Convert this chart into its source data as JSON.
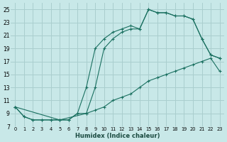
{
  "xlabel": "Humidex (Indice chaleur)",
  "bg_color": "#c8e8e8",
  "grid_color": "#aacece",
  "line_color": "#1a7060",
  "xlim": [
    -0.5,
    23.5
  ],
  "ylim": [
    7,
    26
  ],
  "xticks": [
    0,
    1,
    2,
    3,
    4,
    5,
    6,
    7,
    8,
    9,
    10,
    11,
    12,
    13,
    14,
    15,
    16,
    17,
    18,
    19,
    20,
    21,
    22,
    23
  ],
  "yticks": [
    7,
    9,
    11,
    13,
    15,
    17,
    19,
    21,
    23,
    25
  ],
  "line1_x": [
    0,
    1,
    2,
    3,
    4,
    5,
    6,
    7,
    8,
    9,
    10,
    11,
    12,
    13,
    14,
    15,
    16,
    17,
    18,
    19,
    20,
    21,
    22,
    23
  ],
  "line1_y": [
    10,
    8.5,
    8,
    8,
    8,
    8,
    8,
    9,
    9,
    9.5,
    10,
    11,
    11.5,
    12,
    13,
    14,
    14.5,
    15,
    15.5,
    16,
    16.5,
    17,
    17.5,
    15.5
  ],
  "line2_x": [
    0,
    1,
    2,
    3,
    4,
    5,
    6,
    7,
    8,
    9,
    10,
    11,
    12,
    13,
    14,
    15,
    16,
    17,
    18,
    19,
    20,
    21,
    22,
    23
  ],
  "line2_y": [
    10,
    8.5,
    8,
    8,
    8,
    8,
    8,
    9,
    13,
    19,
    20.5,
    21.5,
    22,
    22.5,
    22,
    25,
    24.5,
    24.5,
    24,
    24,
    23.5,
    20.5,
    18,
    17.5
  ],
  "line3_x": [
    0,
    5,
    8,
    9,
    10,
    11,
    12,
    13,
    14,
    15,
    16,
    17,
    18,
    19,
    20,
    21,
    22,
    23
  ],
  "line3_y": [
    10,
    8,
    9,
    13,
    19,
    20.5,
    21.5,
    22,
    22,
    25,
    24.5,
    24.5,
    24,
    24,
    23.5,
    20.5,
    18,
    17.5
  ]
}
